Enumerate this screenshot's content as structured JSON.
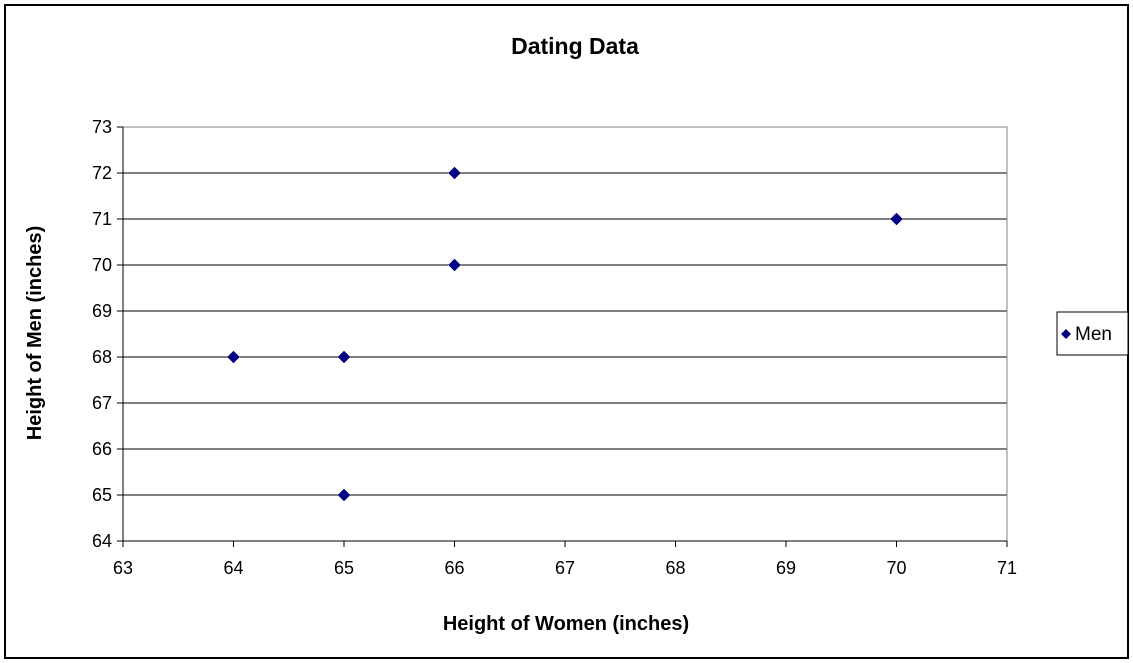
{
  "chart_data": {
    "type": "scatter",
    "title": "Dating Data",
    "xlabel": "Height of Women (inches)",
    "ylabel": "Height of Men (inches)",
    "xlim": [
      63,
      71
    ],
    "ylim": [
      64,
      73
    ],
    "xticks": [
      63,
      64,
      65,
      66,
      67,
      68,
      69,
      70,
      71
    ],
    "yticks": [
      64,
      65,
      66,
      67,
      68,
      69,
      70,
      71,
      72,
      73
    ],
    "grid": "horizontal",
    "legend_position": "right",
    "series": [
      {
        "name": "Men",
        "color": "#000080",
        "marker": "diamond",
        "x": [
          64,
          65,
          65,
          66,
          66,
          70
        ],
        "y": [
          68,
          68,
          65,
          70,
          72,
          71
        ]
      }
    ]
  }
}
